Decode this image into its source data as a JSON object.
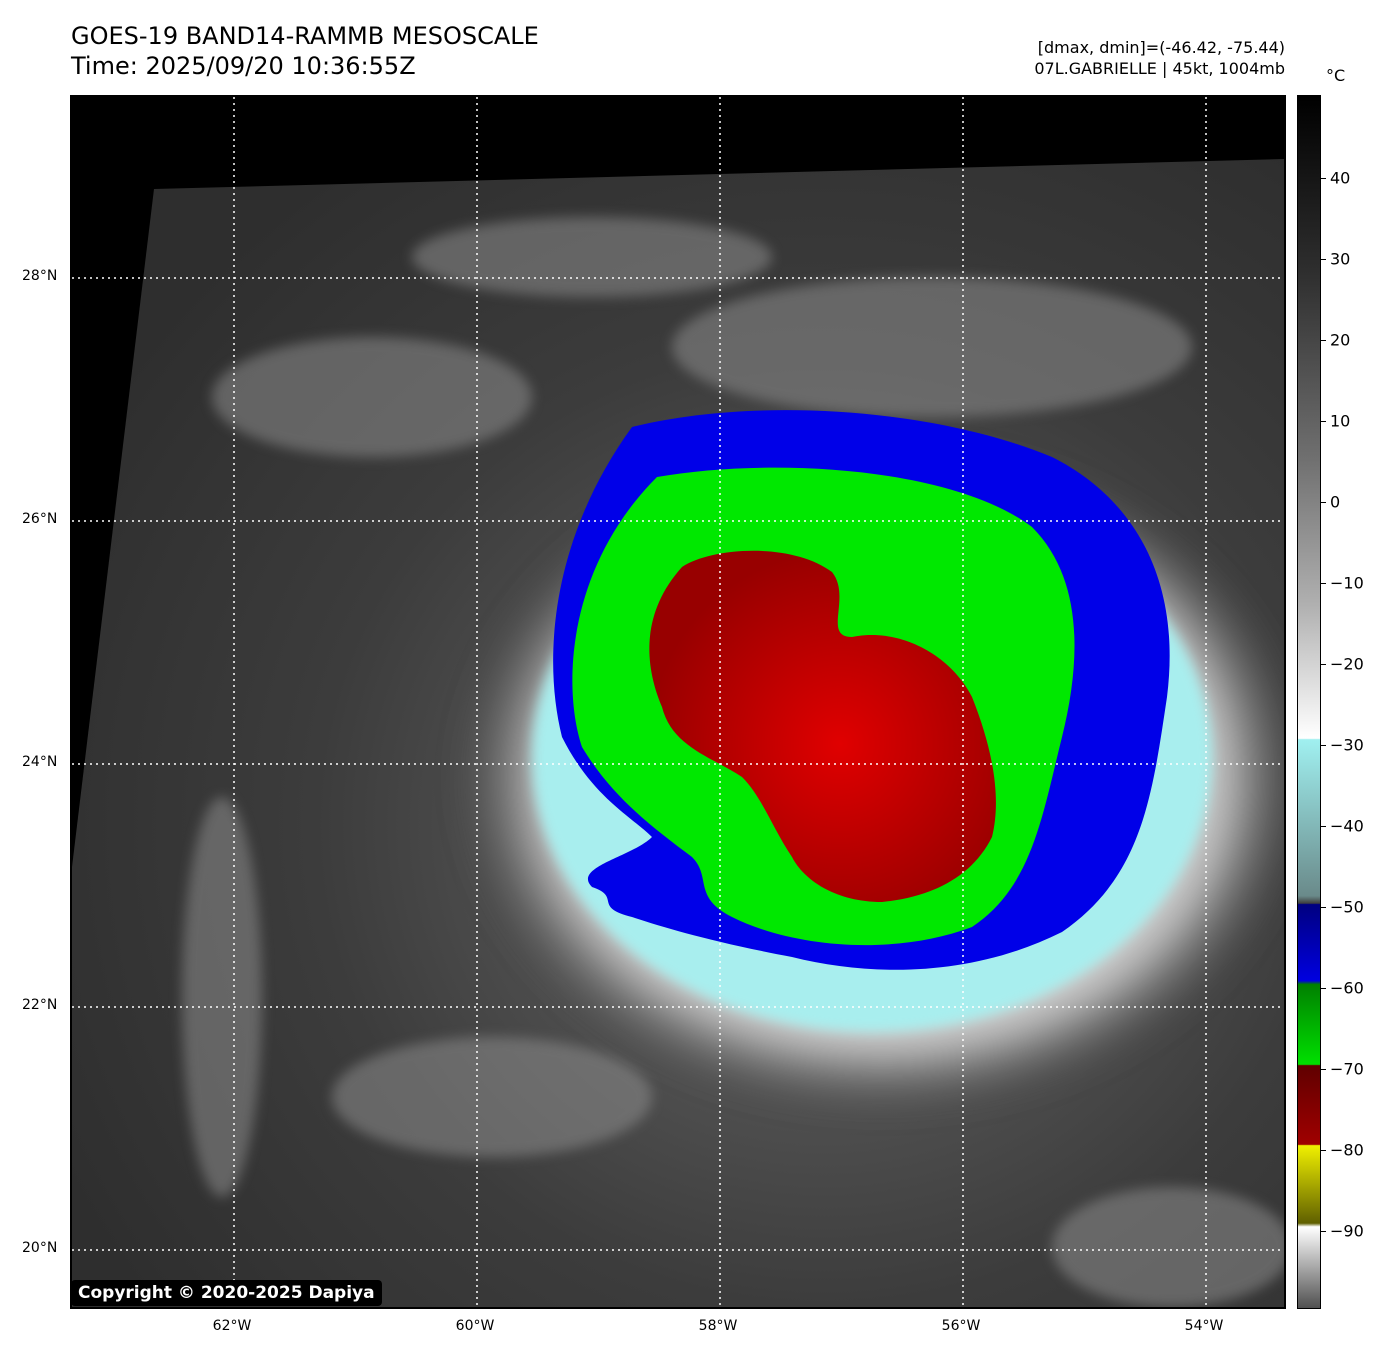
{
  "header": {
    "title_line1": "GOES-19 BAND14-RAMMB MESOSCALE",
    "title_line2": "Time: 2025/09/20 10:36:55Z",
    "info_line1": "[dmax, dmin]=(-46.42, -75.44)",
    "info_line2": "07L.GABRIELLE | 45kt, 1004mb"
  },
  "map": {
    "lat_labels": [
      "28°N",
      "26°N",
      "24°N",
      "22°N",
      "20°N"
    ],
    "lon_labels": [
      "62°W",
      "60°W",
      "58°W",
      "56°W",
      "54°W"
    ],
    "copyright": "Copyright © 2020-2025 Dapiya"
  },
  "colorbar": {
    "unit": "°C",
    "labels": [
      "40",
      "30",
      "20",
      "10",
      "0",
      "−10",
      "−20",
      "−30",
      "−40",
      "−50",
      "−60",
      "−70",
      "−80",
      "−90"
    ],
    "colors": {
      "cold_red": "#a00000",
      "green": "#00e000",
      "blue": "#0000e0",
      "cyan": "#a0f0f0",
      "yellow": "#f0f000"
    }
  }
}
